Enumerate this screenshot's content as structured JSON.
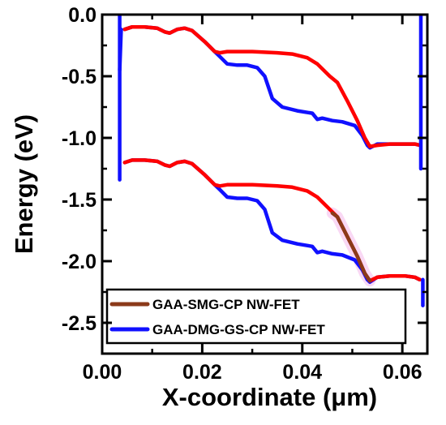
{
  "chart_data": {
    "type": "line",
    "xlabel": "X-coordinate (μm)",
    "ylabel": "Energy (eV)",
    "xlim": [
      0.0,
      0.065
    ],
    "ylim": [
      -2.75,
      0.0
    ],
    "x_ticks": [
      0.0,
      0.02,
      0.04,
      0.06
    ],
    "x_tick_labels": [
      "0.00",
      "0.02",
      "0.04",
      "0.06"
    ],
    "y_ticks": [
      0.0,
      -0.5,
      -1.0,
      -1.5,
      -2.0,
      -2.5
    ],
    "y_tick_labels": [
      "0.0",
      "-0.5",
      "-1.0",
      "-1.5",
      "-2.0",
      "-2.5"
    ],
    "grid": false,
    "legend_position": "bottom-left",
    "legend": [
      {
        "label": "GAA-SMG-CP NW-FET",
        "color": "#8b3a1a"
      },
      {
        "label": "GAA-DMG-GS-CP NW-FET",
        "color": "#1010ff"
      }
    ],
    "series": [
      {
        "band": "conduction",
        "color": "#ff0000",
        "x": [
          0.0045,
          0.006,
          0.0085,
          0.011,
          0.0125,
          0.0135,
          0.015,
          0.0165,
          0.018,
          0.0205,
          0.0225,
          0.0235,
          0.025,
          0.03,
          0.035,
          0.038,
          0.041,
          0.043,
          0.0455,
          0.047,
          0.049,
          0.051,
          0.0525,
          0.0535,
          0.055,
          0.0575,
          0.0605,
          0.0625,
          0.0635
        ],
        "y": [
          -0.12,
          -0.1,
          -0.1,
          -0.11,
          -0.14,
          -0.15,
          -0.12,
          -0.11,
          -0.13,
          -0.22,
          -0.3,
          -0.31,
          -0.3,
          -0.3,
          -0.31,
          -0.32,
          -0.35,
          -0.4,
          -0.5,
          -0.55,
          -0.7,
          -0.86,
          -1.0,
          -1.07,
          -1.06,
          -1.05,
          -1.05,
          -1.05,
          -1.06
        ]
      },
      {
        "band": "conduction",
        "color": "#1010ff",
        "x": [
          0.0045,
          0.006,
          0.0085,
          0.011,
          0.0125,
          0.0135,
          0.015,
          0.0165,
          0.018,
          0.0205,
          0.0225,
          0.0235,
          0.025,
          0.027,
          0.029,
          0.031,
          0.0325,
          0.034,
          0.036,
          0.039,
          0.042,
          0.043,
          0.044,
          0.046,
          0.048,
          0.0505,
          0.052,
          0.053,
          0.0535,
          0.055,
          0.0575,
          0.0605,
          0.0625,
          0.0635
        ],
        "y": [
          -0.12,
          -0.1,
          -0.1,
          -0.11,
          -0.14,
          -0.15,
          -0.12,
          -0.11,
          -0.13,
          -0.22,
          -0.3,
          -0.34,
          -0.4,
          -0.41,
          -0.41,
          -0.43,
          -0.5,
          -0.68,
          -0.75,
          -0.78,
          -0.8,
          -0.85,
          -0.84,
          -0.86,
          -0.87,
          -0.9,
          -0.98,
          -1.06,
          -1.08,
          -1.05,
          -1.05,
          -1.05,
          -1.05,
          -1.06
        ]
      },
      {
        "band": "valence",
        "color": "#ff0000",
        "x": [
          0.0045,
          0.006,
          0.0085,
          0.011,
          0.0125,
          0.0135,
          0.015,
          0.0165,
          0.018,
          0.0205,
          0.0225,
          0.0235,
          0.025,
          0.03,
          0.035,
          0.038,
          0.041,
          0.043,
          0.0455,
          0.047,
          0.049,
          0.051,
          0.0525,
          0.0535,
          0.055,
          0.0575,
          0.0605,
          0.0625,
          0.0635
        ],
        "y": [
          -1.2,
          -1.18,
          -1.18,
          -1.19,
          -1.22,
          -1.23,
          -1.2,
          -1.19,
          -1.21,
          -1.3,
          -1.38,
          -1.39,
          -1.38,
          -1.38,
          -1.39,
          -1.4,
          -1.43,
          -1.48,
          -1.58,
          -1.64,
          -1.8,
          -1.96,
          -2.1,
          -2.16,
          -2.13,
          -2.12,
          -2.12,
          -2.13,
          -2.15
        ]
      },
      {
        "band": "valence",
        "color": "#1010ff",
        "x": [
          0.0045,
          0.006,
          0.0085,
          0.011,
          0.0125,
          0.0135,
          0.015,
          0.0165,
          0.018,
          0.0205,
          0.0225,
          0.0235,
          0.025,
          0.027,
          0.029,
          0.031,
          0.0325,
          0.034,
          0.036,
          0.039,
          0.042,
          0.043,
          0.044,
          0.046,
          0.048,
          0.0505,
          0.052,
          0.053,
          0.0535,
          0.055,
          0.0575,
          0.0605,
          0.0625,
          0.0635
        ],
        "y": [
          -1.2,
          -1.18,
          -1.18,
          -1.19,
          -1.22,
          -1.23,
          -1.2,
          -1.19,
          -1.21,
          -1.3,
          -1.38,
          -1.42,
          -1.48,
          -1.49,
          -1.49,
          -1.51,
          -1.58,
          -1.77,
          -1.83,
          -1.86,
          -1.88,
          -1.93,
          -1.92,
          -1.94,
          -1.95,
          -1.99,
          -2.07,
          -2.15,
          -2.17,
          -2.13,
          -2.12,
          -2.12,
          -2.13,
          -2.15
        ]
      },
      {
        "band": "valence-overlay",
        "color": "#8b3a1a",
        "x": [
          0.046,
          0.047,
          0.049,
          0.051,
          0.0525,
          0.0535
        ],
        "y": [
          -1.61,
          -1.64,
          -1.8,
          -1.96,
          -2.1,
          -2.16
        ]
      }
    ]
  }
}
